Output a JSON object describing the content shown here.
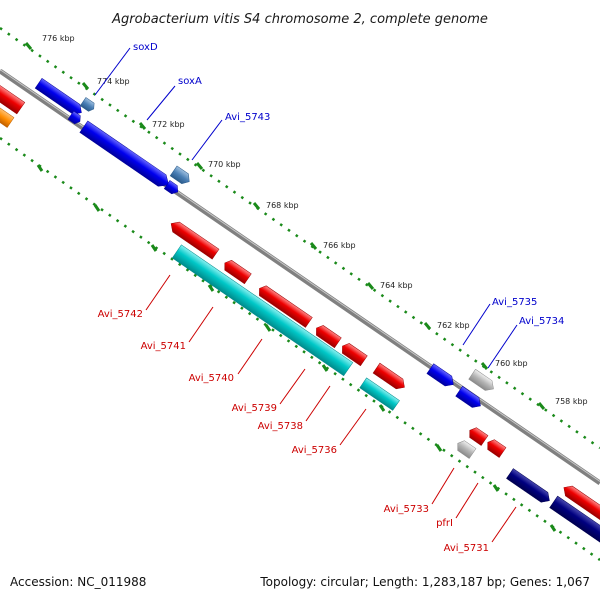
{
  "title": "Agrobacterium vitis S4 chromosome 2, complete genome",
  "footer": {
    "accession": "Accession: NC_011988",
    "summary": "Topology: circular; Length: 1,283,187 bp; Genes: 1,067"
  },
  "colors": {
    "forward_gene": "#0000ee",
    "reverse_gene": "#ee0000",
    "cyan_gene": "#00c8c8",
    "navy_gene": "#000080",
    "small_blue_gene": "#4a7fb5",
    "grey_gene": "#b4b4b4",
    "orange_gene": "#ff8c00",
    "backbone": "#808080",
    "tick": "#1a8a1a",
    "label_blue": "#0000cc",
    "label_red": "#cc0000"
  },
  "ticks": [
    {
      "label": "776 kbp"
    },
    {
      "label": "774 kbp"
    },
    {
      "label": "772 kbp"
    },
    {
      "label": "770 kbp"
    },
    {
      "label": "768 kbp"
    },
    {
      "label": "766 kbp"
    },
    {
      "label": "764 kbp"
    },
    {
      "label": "762 kbp"
    },
    {
      "label": "760 kbp"
    },
    {
      "label": "758 kbp"
    }
  ],
  "gene_labels": [
    {
      "text": "soxD",
      "strand": "forward"
    },
    {
      "text": "soxA",
      "strand": "forward"
    },
    {
      "text": "Avi_5743",
      "strand": "forward"
    },
    {
      "text": "Avi_5735",
      "strand": "forward"
    },
    {
      "text": "Avi_5734",
      "strand": "forward"
    },
    {
      "text": "Avi_5742",
      "strand": "reverse"
    },
    {
      "text": "Avi_5741",
      "strand": "reverse"
    },
    {
      "text": "Avi_5740",
      "strand": "reverse"
    },
    {
      "text": "Avi_5739",
      "strand": "reverse"
    },
    {
      "text": "Avi_5738",
      "strand": "reverse"
    },
    {
      "text": "Avi_5736",
      "strand": "reverse"
    },
    {
      "text": "Avi_5733",
      "strand": "reverse"
    },
    {
      "text": "pfrI",
      "strand": "reverse"
    },
    {
      "text": "Avi_5731",
      "strand": "reverse"
    }
  ]
}
